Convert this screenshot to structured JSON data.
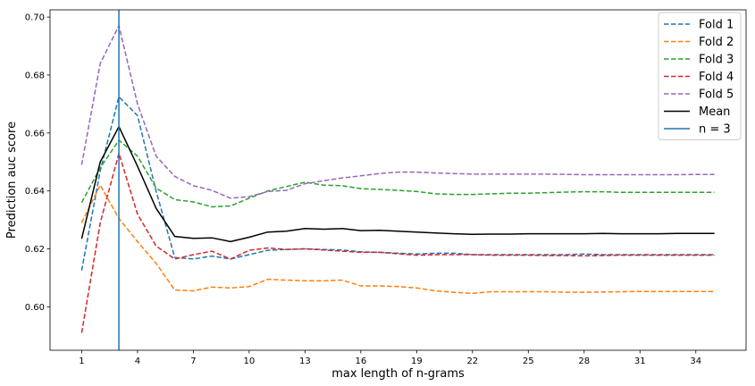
{
  "chart_data": {
    "type": "line",
    "xlabel": "max length of n-grams",
    "ylabel": "Prediction auc score",
    "xlim": [
      -0.7,
      36.7
    ],
    "ylim": [
      0.585,
      0.7025
    ],
    "x_ticks": [
      1,
      4,
      7,
      10,
      13,
      16,
      19,
      22,
      25,
      28,
      31,
      34
    ],
    "y_ticks": [
      0.6,
      0.62,
      0.64,
      0.66,
      0.68,
      0.7
    ],
    "x": [
      1,
      2,
      3,
      4,
      5,
      6,
      7,
      8,
      9,
      10,
      11,
      12,
      13,
      14,
      15,
      16,
      17,
      18,
      19,
      20,
      21,
      22,
      23,
      24,
      25,
      26,
      27,
      28,
      29,
      30,
      31,
      32,
      33,
      34,
      35
    ],
    "series": [
      {
        "name": "Fold 1",
        "color": "#1f77b4",
        "dash": true,
        "values": [
          0.6125,
          0.647,
          0.6725,
          0.666,
          0.64,
          0.617,
          0.6165,
          0.6175,
          0.6165,
          0.618,
          0.6195,
          0.6198,
          0.62,
          0.6198,
          0.6196,
          0.619,
          0.6188,
          0.6185,
          0.6182,
          0.6185,
          0.6185,
          0.618,
          0.618,
          0.618,
          0.618,
          0.618,
          0.618,
          0.6182,
          0.618,
          0.618,
          0.618,
          0.618,
          0.618,
          0.618,
          0.618
        ]
      },
      {
        "name": "Fold 2",
        "color": "#ff7f0e",
        "dash": true,
        "values": [
          0.629,
          0.642,
          0.6305,
          0.6225,
          0.615,
          0.6058,
          0.6055,
          0.6068,
          0.6065,
          0.607,
          0.6095,
          0.6092,
          0.609,
          0.609,
          0.6092,
          0.6072,
          0.6072,
          0.607,
          0.6065,
          0.6055,
          0.605,
          0.6046,
          0.6052,
          0.6052,
          0.6052,
          0.6052,
          0.605,
          0.605,
          0.6051,
          0.6052,
          0.6053,
          0.6053,
          0.6053,
          0.6053,
          0.6053
        ]
      },
      {
        "name": "Fold 3",
        "color": "#2ca02c",
        "dash": true,
        "values": [
          0.636,
          0.648,
          0.6575,
          0.652,
          0.641,
          0.637,
          0.6362,
          0.6345,
          0.6348,
          0.6375,
          0.64,
          0.6415,
          0.643,
          0.642,
          0.6418,
          0.6408,
          0.6405,
          0.6402,
          0.6398,
          0.639,
          0.6388,
          0.6388,
          0.639,
          0.6392,
          0.6392,
          0.6394,
          0.6396,
          0.6397,
          0.6397,
          0.6395,
          0.6395,
          0.6395,
          0.6395,
          0.6395,
          0.6395
        ]
      },
      {
        "name": "Fold 4",
        "color": "#d62728",
        "dash": true,
        "values": [
          0.591,
          0.629,
          0.653,
          0.632,
          0.621,
          0.6165,
          0.618,
          0.6192,
          0.6165,
          0.6195,
          0.6203,
          0.6198,
          0.62,
          0.6196,
          0.6192,
          0.6188,
          0.6188,
          0.6183,
          0.6178,
          0.618,
          0.618,
          0.618,
          0.6178,
          0.6178,
          0.6178,
          0.6177,
          0.6177,
          0.6176,
          0.6177,
          0.6178,
          0.6178,
          0.6178,
          0.6178,
          0.6178,
          0.6178
        ]
      },
      {
        "name": "Fold 5",
        "color": "#9467bd",
        "dash": true,
        "values": [
          0.649,
          0.684,
          0.697,
          0.67,
          0.652,
          0.645,
          0.6418,
          0.6402,
          0.6375,
          0.638,
          0.6398,
          0.6402,
          0.6425,
          0.6435,
          0.6445,
          0.6452,
          0.646,
          0.6465,
          0.6465,
          0.6462,
          0.646,
          0.6458,
          0.6458,
          0.6458,
          0.6458,
          0.6458,
          0.6457,
          0.6456,
          0.6456,
          0.6456,
          0.6456,
          0.6456,
          0.6456,
          0.6457,
          0.6457
        ]
      },
      {
        "name": "Mean",
        "color": "#000000",
        "dash": false,
        "values": [
          0.6235,
          0.65,
          0.6622,
          0.6485,
          0.634,
          0.6243,
          0.6236,
          0.6238,
          0.6225,
          0.624,
          0.6258,
          0.6261,
          0.627,
          0.6268,
          0.627,
          0.6263,
          0.6264,
          0.6261,
          0.6258,
          0.6255,
          0.6252,
          0.625,
          0.6251,
          0.6251,
          0.6252,
          0.6252,
          0.6252,
          0.6252,
          0.6253,
          0.6252,
          0.6252,
          0.6252,
          0.6253,
          0.6253,
          0.6253
        ]
      }
    ],
    "vline": {
      "name": "n = 3",
      "x": 3,
      "color": "#1f77b4"
    },
    "legend": {
      "placement": "top-right",
      "entries": [
        {
          "label": "Fold 1",
          "color": "#1f77b4",
          "dash": true
        },
        {
          "label": "Fold 2",
          "color": "#ff7f0e",
          "dash": true
        },
        {
          "label": "Fold 3",
          "color": "#2ca02c",
          "dash": true
        },
        {
          "label": "Fold 4",
          "color": "#d62728",
          "dash": true
        },
        {
          "label": "Fold 5",
          "color": "#9467bd",
          "dash": true
        },
        {
          "label": "Mean",
          "color": "#000000",
          "dash": false
        },
        {
          "label": "n = 3",
          "color": "#1f77b4",
          "dash": false
        }
      ]
    },
    "grid": false
  }
}
